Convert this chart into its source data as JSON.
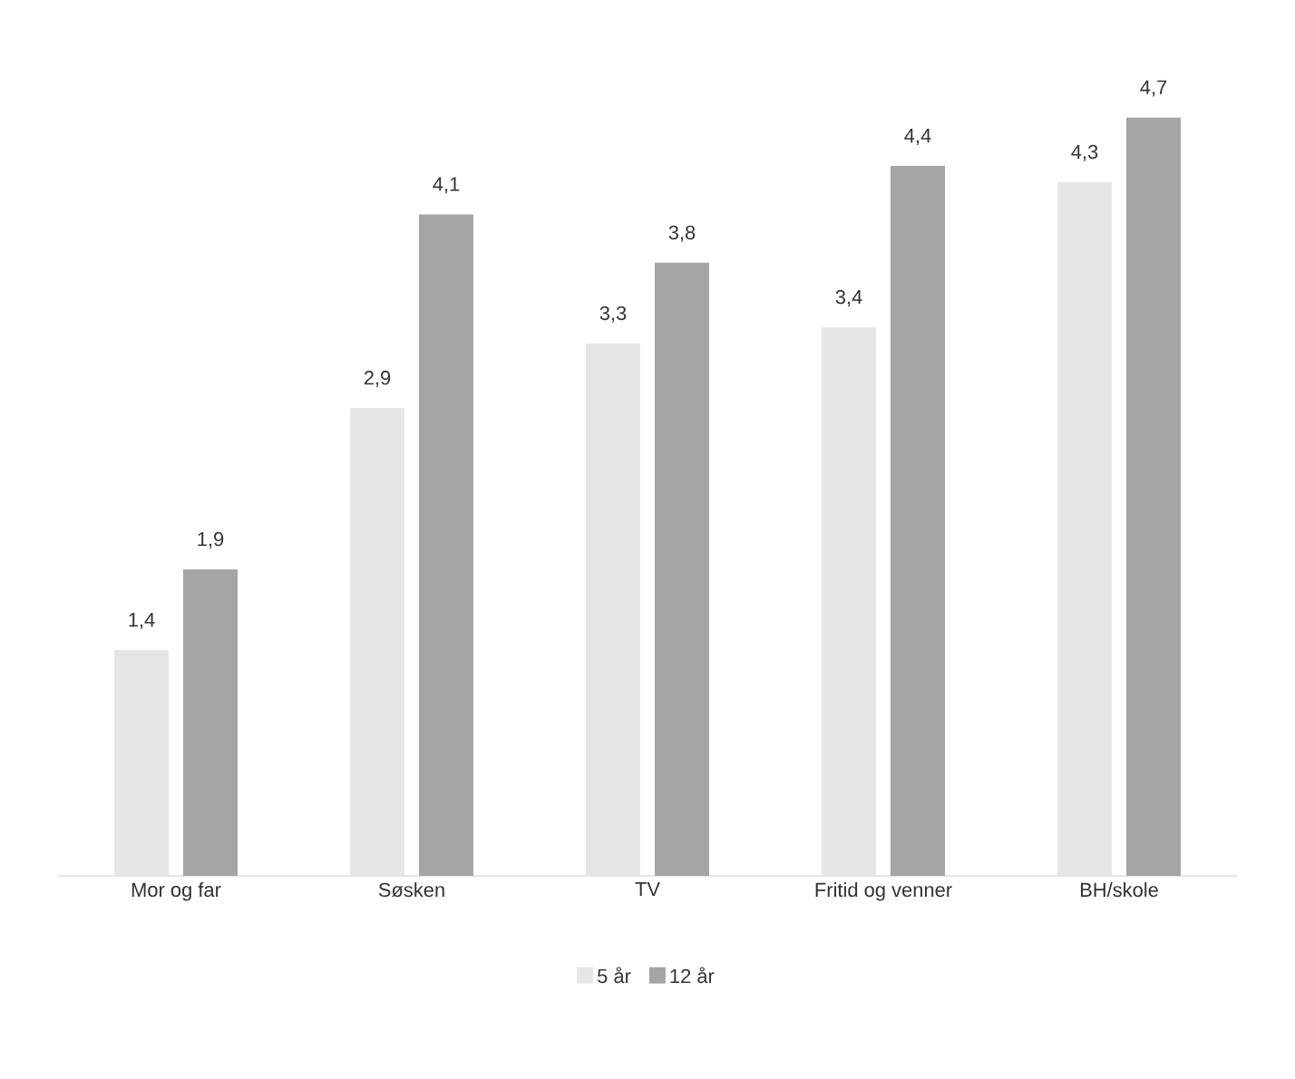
{
  "chart_data": {
    "type": "bar",
    "categories": [
      "Mor og far",
      "Søsken",
      "TV",
      "Fritid og venner",
      "BH/skole"
    ],
    "series": [
      {
        "name": "5 år",
        "color": "#e7e6e6",
        "values": [
          1.4,
          2.9,
          3.3,
          3.4,
          4.3
        ],
        "value_labels": [
          "1,4",
          "2,9",
          "3,3",
          "3,4",
          "4,3"
        ]
      },
      {
        "name": "12 år",
        "color": "#a5a5a5",
        "values": [
          1.9,
          4.1,
          3.8,
          4.4,
          4.7
        ],
        "value_labels": [
          "1,9",
          "4,1",
          "3,8",
          "4,4",
          "4,7"
        ]
      }
    ],
    "legend": "bottom"
  }
}
